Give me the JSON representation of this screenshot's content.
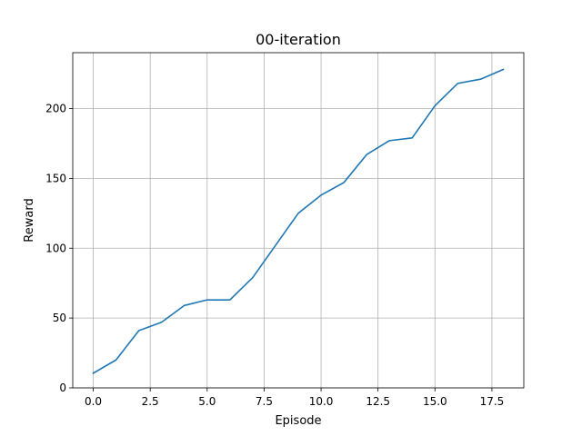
{
  "chart_data": {
    "type": "line",
    "title": "00-iteration",
    "xlabel": "Episode",
    "ylabel": "Reward",
    "xlim": [
      -0.9,
      18.9
    ],
    "ylim": [
      0,
      240
    ],
    "grid": true,
    "line_color": "#1f77b4",
    "x_ticks": [
      0.0,
      2.5,
      5.0,
      7.5,
      10.0,
      12.5,
      15.0,
      17.5
    ],
    "x_tick_labels": [
      "0.0",
      "2.5",
      "5.0",
      "7.5",
      "10.0",
      "12.5",
      "15.0",
      "17.5"
    ],
    "y_ticks": [
      0,
      50,
      100,
      150,
      200
    ],
    "y_tick_labels": [
      "0",
      "50",
      "100",
      "150",
      "200"
    ],
    "series": [
      {
        "x": [
          0,
          1,
          2,
          3,
          4,
          5,
          6,
          7,
          8,
          9,
          10,
          11,
          12,
          13,
          14,
          15,
          16,
          17,
          18
        ],
        "values": [
          10.5,
          20,
          41,
          47,
          59,
          63,
          63,
          79,
          102,
          125,
          138,
          147,
          167,
          177,
          179,
          202,
          218,
          221,
          228
        ]
      }
    ]
  }
}
